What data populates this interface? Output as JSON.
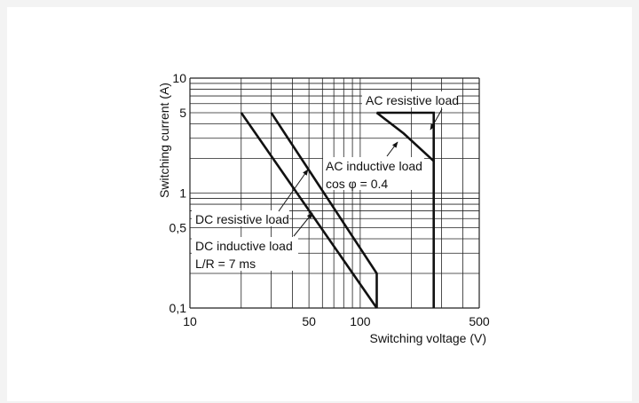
{
  "chart_data": {
    "type": "line",
    "xscale": "log",
    "yscale": "log",
    "xlim": [
      10,
      500
    ],
    "ylim": [
      0.1,
      10
    ],
    "xlabel": "Switching voltage (V)",
    "ylabel": "Switching current (A)",
    "grid": true,
    "x_tick_labels": [
      {
        "value": 10,
        "label": "10"
      },
      {
        "value": 50,
        "label": "50"
      },
      {
        "value": 100,
        "label": "100"
      },
      {
        "value": 500,
        "label": "500"
      }
    ],
    "y_tick_labels": [
      {
        "value": 0.1,
        "label": "0,1"
      },
      {
        "value": 0.5,
        "label": "0,5"
      },
      {
        "value": 1,
        "label": "1"
      },
      {
        "value": 5,
        "label": "5"
      },
      {
        "value": 10,
        "label": "10"
      }
    ],
    "series": [
      {
        "name": "AC resistive load",
        "points": [
          [
            125,
            5
          ],
          [
            270,
            5
          ],
          [
            270,
            0.1
          ]
        ]
      },
      {
        "name": "AC inductive load",
        "points": [
          [
            125,
            5
          ],
          [
            180,
            3.3
          ],
          [
            270,
            1.9
          ]
        ]
      },
      {
        "name": "DC resistive load",
        "points": [
          [
            30,
            5
          ],
          [
            125,
            0.2
          ],
          [
            125,
            0.1
          ]
        ]
      },
      {
        "name": "DC inductive load",
        "points": [
          [
            20,
            5
          ],
          [
            125,
            0.1
          ]
        ]
      }
    ],
    "annotations": [
      {
        "id": "ac-resistive",
        "lines": [
          "AC resistive load"
        ],
        "series": "AC resistive load"
      },
      {
        "id": "ac-inductive",
        "lines": [
          "AC inductive load",
          "cos φ = 0.4"
        ],
        "series": "AC inductive load"
      },
      {
        "id": "dc-resistive",
        "lines": [
          "DC resistive load"
        ],
        "series": "DC resistive load"
      },
      {
        "id": "dc-inductive",
        "lines": [
          "DC inductive load",
          "L/R = 7 ms"
        ],
        "series": "DC inductive load"
      }
    ]
  }
}
